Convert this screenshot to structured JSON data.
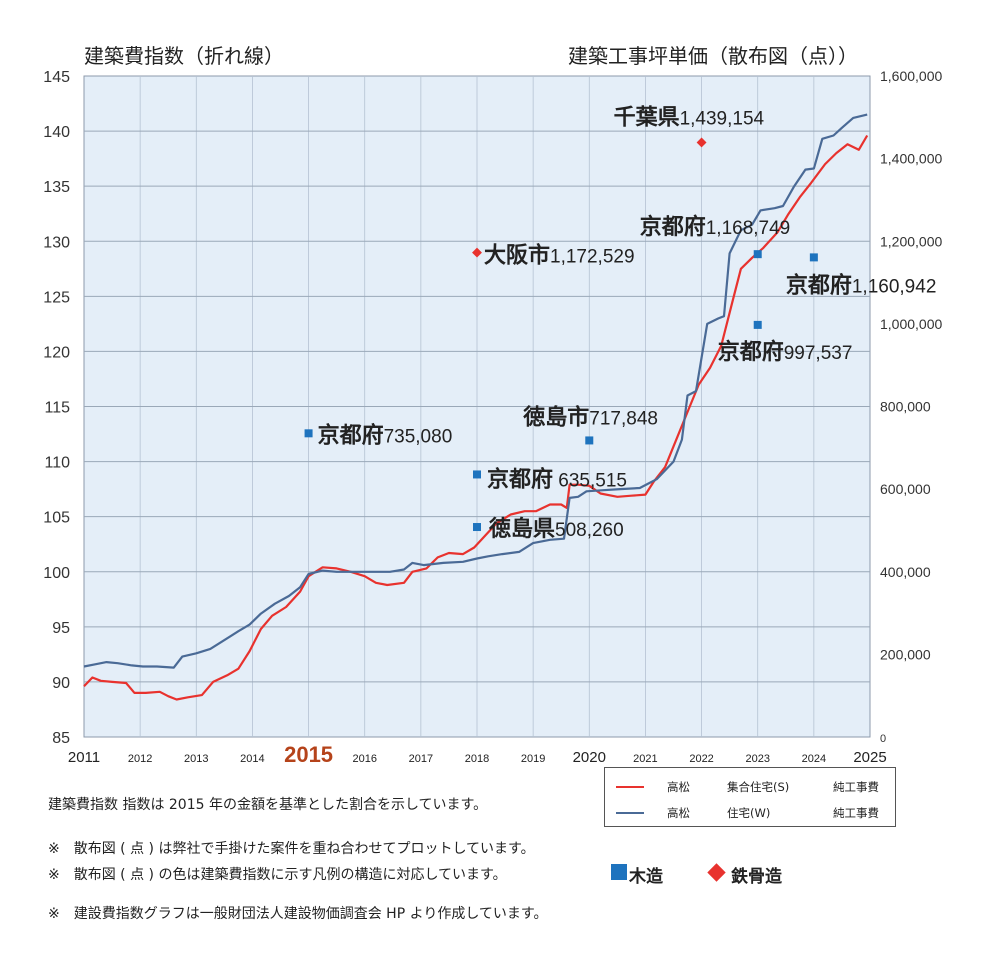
{
  "titles": {
    "left": "建築費指数（折れ線）",
    "right": "建築工事坪単価（散布図（点））"
  },
  "colors": {
    "s_line": "#e8322e",
    "w_line": "#4a6a96",
    "wood": "#1e73be",
    "steel": "#e8322e",
    "plot_bg": "#e4eef8",
    "grid": "#9aa8b8",
    "highlight_year": "#b5431a"
  },
  "legend": {
    "rows": [
      {
        "series": "高松",
        "type": "集合住宅(S)",
        "cost": "純工事費"
      },
      {
        "series": "高松",
        "type": "住宅(W)",
        "cost": "純工事費"
      }
    ]
  },
  "notes": {
    "index_note": "建築費指数  指数は 2015 年の金額を基準とした割合を示しています。",
    "note1": "※　散布図 ( 点 ) は弊社で手掛けた案件を重ね合わせてプロットしています。",
    "note2": "※　散布図 ( 点 ) の色は建築費指数に示す凡例の構造に対応しています。",
    "note3": "※　建設費指数グラフは一般財団法人建設物価調査会 HP より作成しています。",
    "wood_label": "木造",
    "steel_label": "鉄骨造"
  },
  "chart_data": {
    "type": "line",
    "x_ticks": [
      "2011",
      "2012",
      "2013",
      "2014",
      "2015",
      "2016",
      "2017",
      "2018",
      "2019",
      "2020",
      "2021",
      "2022",
      "2023",
      "2024",
      "2025"
    ],
    "highlight_tick": "2015",
    "xlim": [
      2011,
      2025
    ],
    "y_left": {
      "ticks": [
        145,
        140,
        135,
        130,
        125,
        120,
        115,
        110,
        105,
        100,
        95,
        90,
        85
      ],
      "lim": [
        85,
        145
      ]
    },
    "y_right": {
      "ticks": [
        "1,600,000",
        "1,400,000",
        "1,200,000",
        "1,000,000",
        "800,000",
        "600,000",
        "400,000",
        "200,000",
        "0"
      ],
      "lim": [
        0,
        1600000
      ]
    },
    "series": [
      {
        "name": "高松　集合住宅(S)　純工事費",
        "color": "#e8322e",
        "points": [
          [
            2011.0,
            89.6
          ],
          [
            2011.15,
            90.4
          ],
          [
            2011.3,
            90.1
          ],
          [
            2011.5,
            90.0
          ],
          [
            2011.75,
            89.9
          ],
          [
            2011.9,
            89.0
          ],
          [
            2012.1,
            89.0
          ],
          [
            2012.35,
            89.1
          ],
          [
            2012.5,
            88.7
          ],
          [
            2012.65,
            88.4
          ],
          [
            2012.85,
            88.6
          ],
          [
            2013.1,
            88.8
          ],
          [
            2013.3,
            90.0
          ],
          [
            2013.55,
            90.6
          ],
          [
            2013.75,
            91.2
          ],
          [
            2013.95,
            92.8
          ],
          [
            2014.15,
            94.8
          ],
          [
            2014.35,
            96.0
          ],
          [
            2014.6,
            96.8
          ],
          [
            2014.85,
            98.2
          ],
          [
            2015.0,
            99.6
          ],
          [
            2015.25,
            100.4
          ],
          [
            2015.5,
            100.3
          ],
          [
            2015.75,
            100.0
          ],
          [
            2016.0,
            99.6
          ],
          [
            2016.2,
            99.0
          ],
          [
            2016.4,
            98.8
          ],
          [
            2016.7,
            99.0
          ],
          [
            2016.85,
            100.0
          ],
          [
            2017.1,
            100.3
          ],
          [
            2017.3,
            101.3
          ],
          [
            2017.5,
            101.7
          ],
          [
            2017.75,
            101.6
          ],
          [
            2017.95,
            102.2
          ],
          [
            2018.15,
            103.3
          ],
          [
            2018.35,
            104.4
          ],
          [
            2018.6,
            105.2
          ],
          [
            2018.85,
            105.5
          ],
          [
            2019.05,
            105.5
          ],
          [
            2019.3,
            106.1
          ],
          [
            2019.5,
            106.1
          ],
          [
            2019.6,
            105.8
          ],
          [
            2019.65,
            107.9
          ],
          [
            2019.8,
            107.9
          ],
          [
            2020.0,
            107.8
          ],
          [
            2020.2,
            107.1
          ],
          [
            2020.5,
            106.8
          ],
          [
            2020.75,
            106.9
          ],
          [
            2021.0,
            107.0
          ],
          [
            2021.15,
            108.2
          ],
          [
            2021.35,
            109.5
          ],
          [
            2021.55,
            112.0
          ],
          [
            2021.75,
            114.5
          ],
          [
            2021.95,
            117.0
          ],
          [
            2022.15,
            118.5
          ],
          [
            2022.35,
            120.5
          ],
          [
            2022.55,
            124.5
          ],
          [
            2022.7,
            127.5
          ],
          [
            2022.9,
            128.5
          ],
          [
            2023.1,
            129.4
          ],
          [
            2023.35,
            130.8
          ],
          [
            2023.55,
            132.5
          ],
          [
            2023.75,
            134.0
          ],
          [
            2023.95,
            135.3
          ],
          [
            2024.2,
            137.0
          ],
          [
            2024.4,
            138.0
          ],
          [
            2024.6,
            138.8
          ],
          [
            2024.8,
            138.3
          ],
          [
            2024.95,
            139.6
          ]
        ]
      },
      {
        "name": "高松　住宅(W)　純工事費",
        "color": "#4a6a96",
        "points": [
          [
            2011.0,
            91.4
          ],
          [
            2011.2,
            91.6
          ],
          [
            2011.4,
            91.8
          ],
          [
            2011.6,
            91.7
          ],
          [
            2011.85,
            91.5
          ],
          [
            2012.05,
            91.4
          ],
          [
            2012.3,
            91.4
          ],
          [
            2012.6,
            91.3
          ],
          [
            2012.75,
            92.3
          ],
          [
            2013.0,
            92.6
          ],
          [
            2013.25,
            93.0
          ],
          [
            2013.5,
            93.8
          ],
          [
            2013.75,
            94.6
          ],
          [
            2013.95,
            95.2
          ],
          [
            2014.15,
            96.2
          ],
          [
            2014.4,
            97.1
          ],
          [
            2014.65,
            97.8
          ],
          [
            2014.85,
            98.6
          ],
          [
            2015.0,
            99.8
          ],
          [
            2015.25,
            100.1
          ],
          [
            2015.5,
            100.0
          ],
          [
            2015.8,
            100.0
          ],
          [
            2016.1,
            100.0
          ],
          [
            2016.45,
            100.0
          ],
          [
            2016.7,
            100.2
          ],
          [
            2016.85,
            100.8
          ],
          [
            2017.05,
            100.6
          ],
          [
            2017.4,
            100.8
          ],
          [
            2017.75,
            100.9
          ],
          [
            2018.0,
            101.2
          ],
          [
            2018.2,
            101.4
          ],
          [
            2018.45,
            101.6
          ],
          [
            2018.75,
            101.8
          ],
          [
            2019.0,
            102.6
          ],
          [
            2019.3,
            102.9
          ],
          [
            2019.55,
            103.0
          ],
          [
            2019.65,
            106.7
          ],
          [
            2019.8,
            106.8
          ],
          [
            2019.95,
            107.3
          ],
          [
            2020.25,
            107.4
          ],
          [
            2020.55,
            107.5
          ],
          [
            2020.9,
            107.6
          ],
          [
            2021.05,
            108.0
          ],
          [
            2021.2,
            108.4
          ],
          [
            2021.5,
            110.0
          ],
          [
            2021.65,
            112.0
          ],
          [
            2021.75,
            116.0
          ],
          [
            2021.9,
            116.4
          ],
          [
            2022.1,
            122.5
          ],
          [
            2022.3,
            123.0
          ],
          [
            2022.4,
            123.2
          ],
          [
            2022.5,
            128.9
          ],
          [
            2022.7,
            131.0
          ],
          [
            2022.9,
            131.5
          ],
          [
            2023.05,
            132.8
          ],
          [
            2023.3,
            133.0
          ],
          [
            2023.45,
            133.2
          ],
          [
            2023.65,
            135.0
          ],
          [
            2023.85,
            136.5
          ],
          [
            2024.0,
            136.6
          ],
          [
            2024.15,
            139.3
          ],
          [
            2024.35,
            139.6
          ],
          [
            2024.5,
            140.3
          ],
          [
            2024.7,
            141.2
          ],
          [
            2024.95,
            141.5
          ]
        ]
      }
    ],
    "scatter": [
      {
        "year": 2015.0,
        "value": 735080,
        "kind": "wood",
        "city": "京都府",
        "price": "735,080"
      },
      {
        "year": 2018.0,
        "value": 1172529,
        "kind": "steel",
        "city": "大阪市",
        "price": "1,172,529"
      },
      {
        "year": 2018.0,
        "value": 635515,
        "kind": "wood",
        "city": "京都府",
        "price": " 635,515"
      },
      {
        "year": 2018.0,
        "value": 508260,
        "kind": "wood",
        "city": "徳島県",
        "price": "508,260"
      },
      {
        "year": 2020.0,
        "value": 717848,
        "kind": "wood",
        "city": "徳島市",
        "price": "717,848"
      },
      {
        "year": 2022.0,
        "value": 1439154,
        "kind": "steel",
        "city": "千葉県",
        "price": "1,439,154"
      },
      {
        "year": 2023.0,
        "value": 1168749,
        "kind": "wood",
        "city": "京都府",
        "price": "1,168,749"
      },
      {
        "year": 2023.0,
        "value": 997537,
        "kind": "wood",
        "city": "京都府",
        "price": "997,537"
      },
      {
        "year": 2024.0,
        "value": 1160942,
        "kind": "wood",
        "city": "京都府",
        "price": "1,160,942"
      }
    ]
  }
}
